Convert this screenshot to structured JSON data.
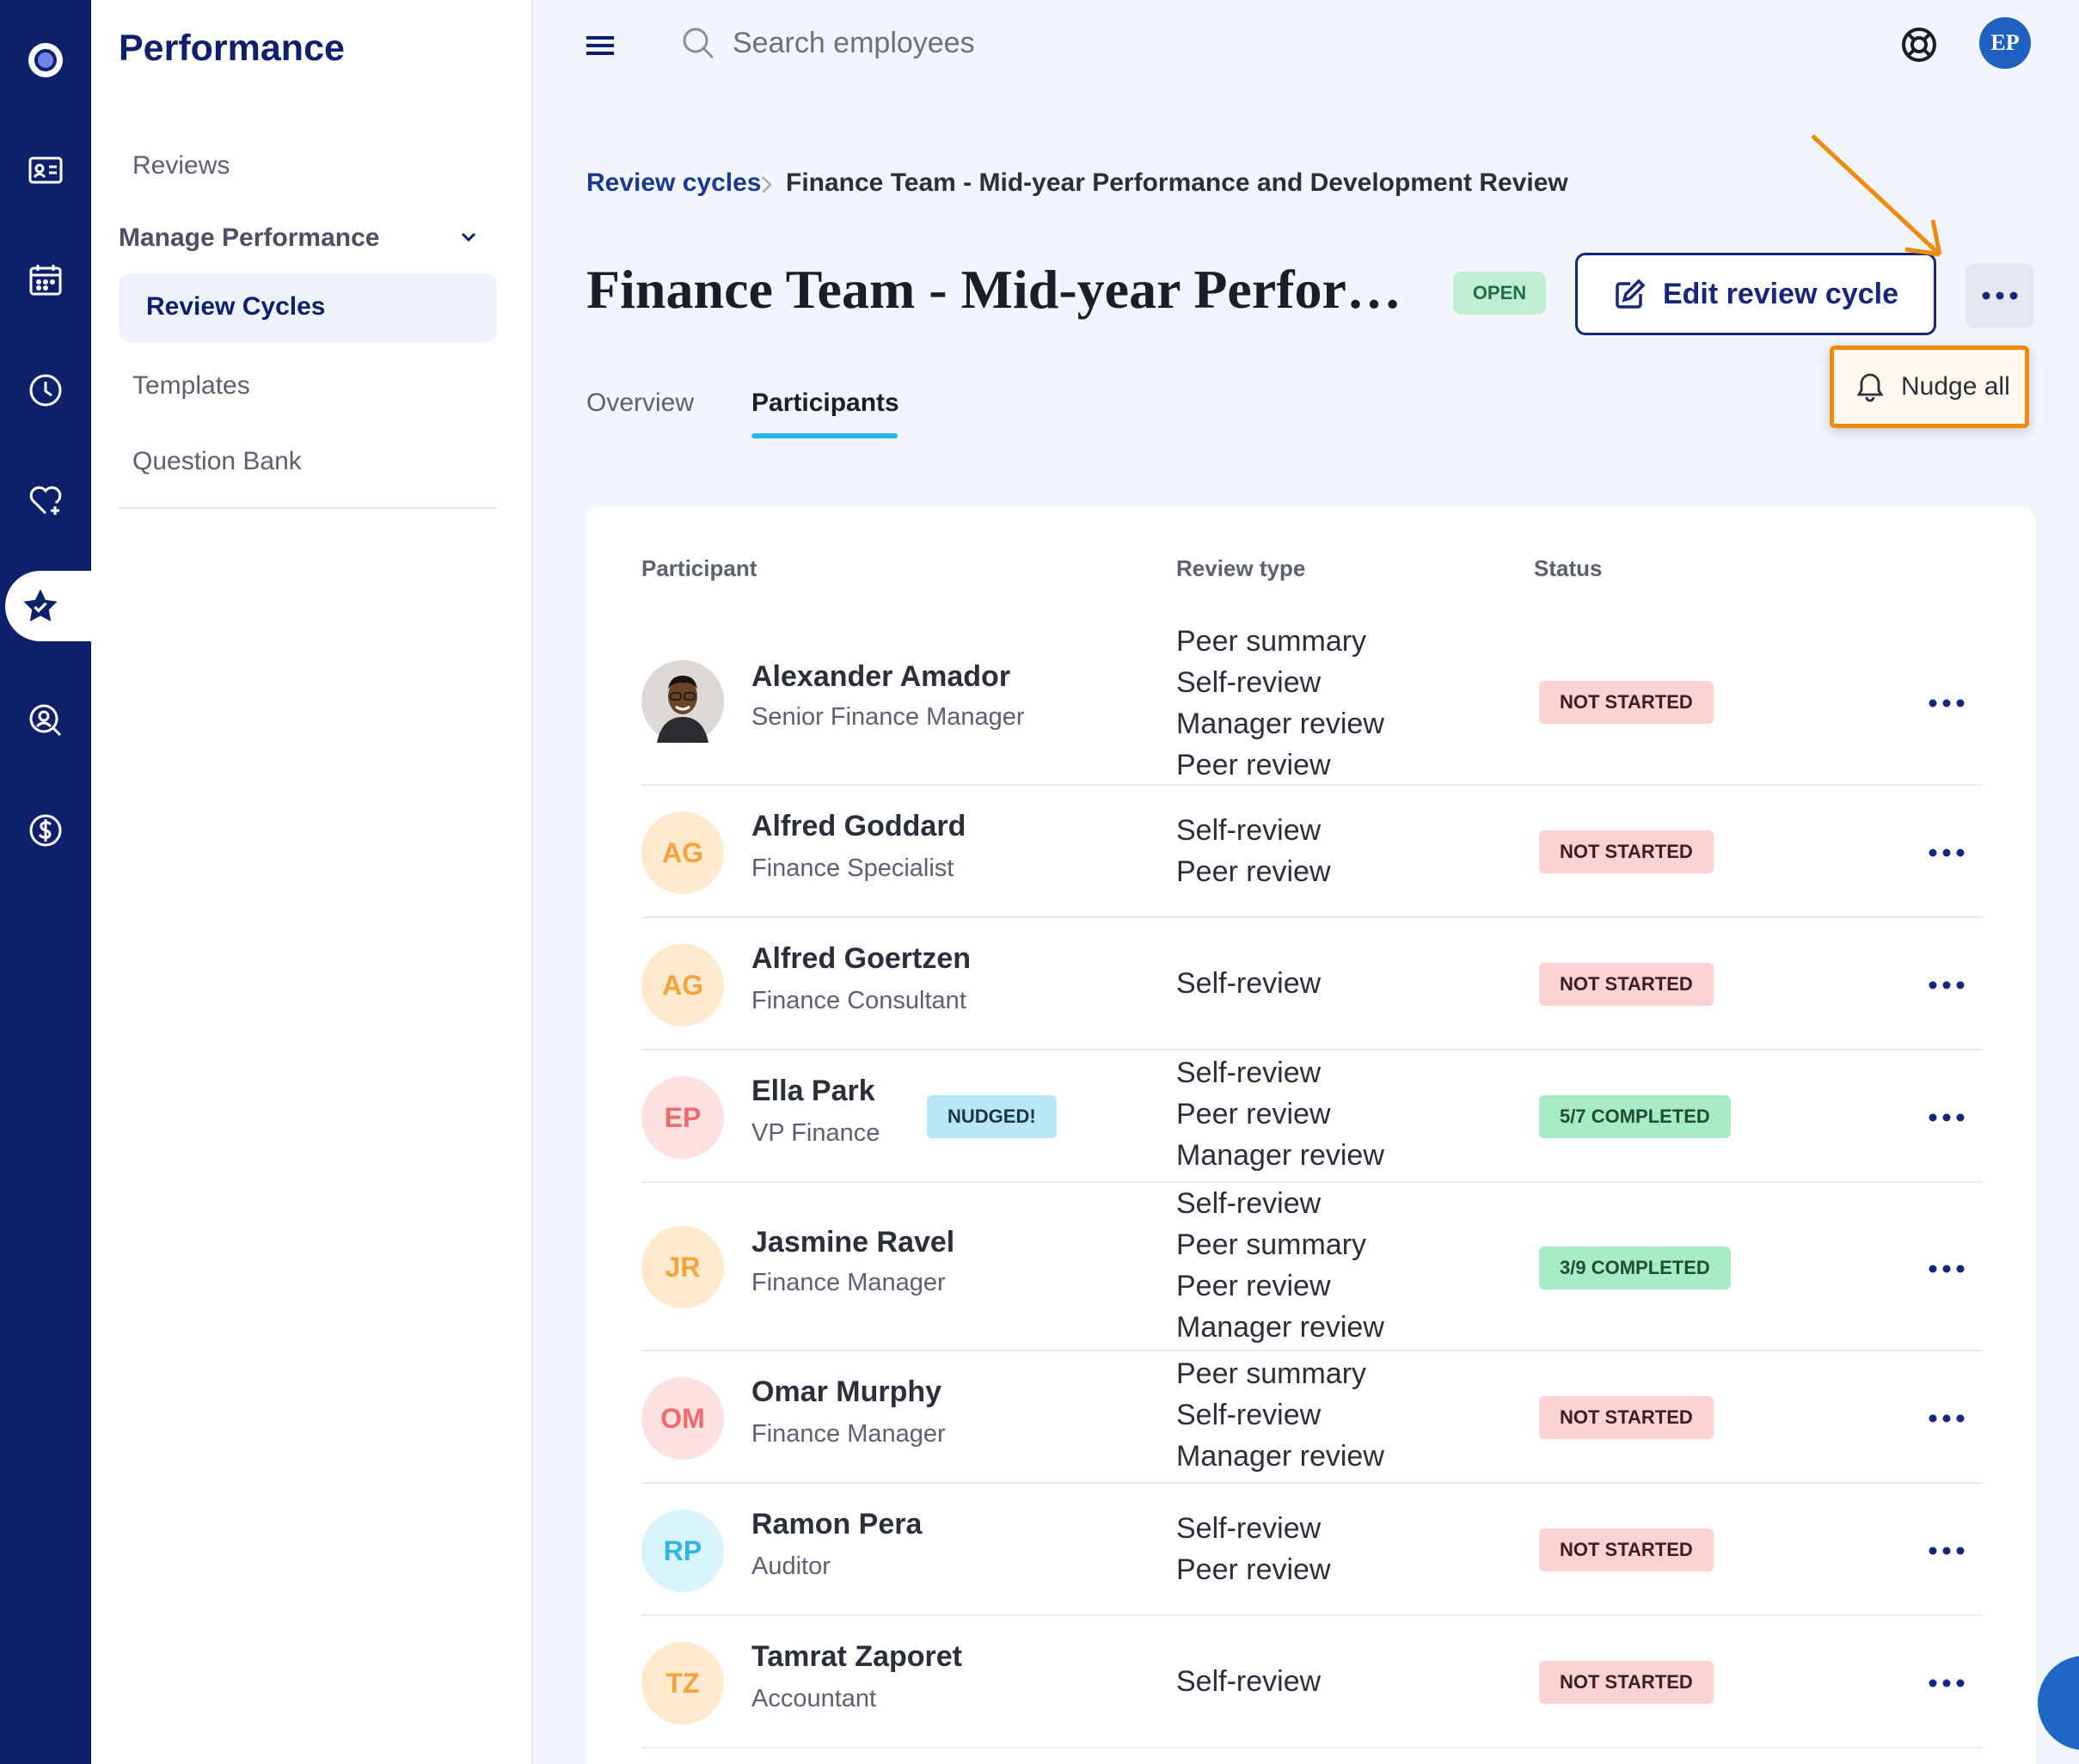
{
  "app": {
    "section_title": "Performance",
    "colors": {
      "navy": "#0e1f6b",
      "accent": "#25b7e8",
      "highlight": "#f08a0c"
    }
  },
  "rail": {
    "icons": [
      "logo-icon",
      "id-card-icon",
      "calendar-icon",
      "clock-icon",
      "heart-icon",
      "star-icon",
      "search-person-icon",
      "dollar-icon"
    ],
    "active": "star-icon"
  },
  "subnav": {
    "reviews": "Reviews",
    "group_label": "Manage Performance",
    "review_cycles": "Review Cycles",
    "templates": "Templates",
    "question_bank": "Question Bank"
  },
  "topbar": {
    "search_placeholder": "Search employees",
    "avatar_initials": "EP"
  },
  "breadcrumb": {
    "link": "Review cycles",
    "current": "Finance Team - Mid-year Performance and Development Review"
  },
  "header": {
    "title": "Finance Team - Mid-year Performance and Development Review",
    "status_badge": "OPEN",
    "edit_label": "Edit review cycle",
    "nudge_all_label": "Nudge all"
  },
  "tabs": {
    "overview": "Overview",
    "participants": "Participants",
    "active": "participants"
  },
  "table": {
    "headers": {
      "participant": "Participant",
      "review_type": "Review type",
      "status": "Status"
    },
    "rows": [
      {
        "name": "Alexander Amador",
        "role": "Senior Finance Manager",
        "initials": "",
        "types": [
          "Peer summary",
          "Self-review",
          "Manager review",
          "Peer review"
        ],
        "status": "NOT STARTED"
      },
      {
        "name": "Alfred Goddard",
        "role": "Finance Specialist",
        "initials": "AG",
        "types": [
          "Self-review",
          "Peer review"
        ],
        "status": "NOT STARTED"
      },
      {
        "name": "Alfred Goertzen",
        "role": "Finance Consultant",
        "initials": "AG",
        "types": [
          "Self-review"
        ],
        "status": "NOT STARTED"
      },
      {
        "name": "Ella Park",
        "role": "VP Finance",
        "initials": "EP",
        "badge": "NUDGED!",
        "types": [
          "Self-review",
          "Peer review",
          "Manager review"
        ],
        "status": "5/7 COMPLETED"
      },
      {
        "name": "Jasmine Ravel",
        "role": "Finance Manager",
        "initials": "JR",
        "types": [
          "Self-review",
          "Peer summary",
          "Peer review",
          "Manager review"
        ],
        "status": "3/9 COMPLETED"
      },
      {
        "name": "Omar Murphy",
        "role": "Finance Manager",
        "initials": "OM",
        "types": [
          "Peer summary",
          "Self-review",
          "Manager review"
        ],
        "status": "NOT STARTED"
      },
      {
        "name": "Ramon Pera",
        "role": "Auditor",
        "initials": "RP",
        "types": [
          "Self-review",
          "Peer review"
        ],
        "status": "NOT STARTED"
      },
      {
        "name": "Tamrat Zaporet",
        "role": "Accountant",
        "initials": "TZ",
        "types": [
          "Self-review"
        ],
        "status": "NOT STARTED"
      }
    ]
  }
}
